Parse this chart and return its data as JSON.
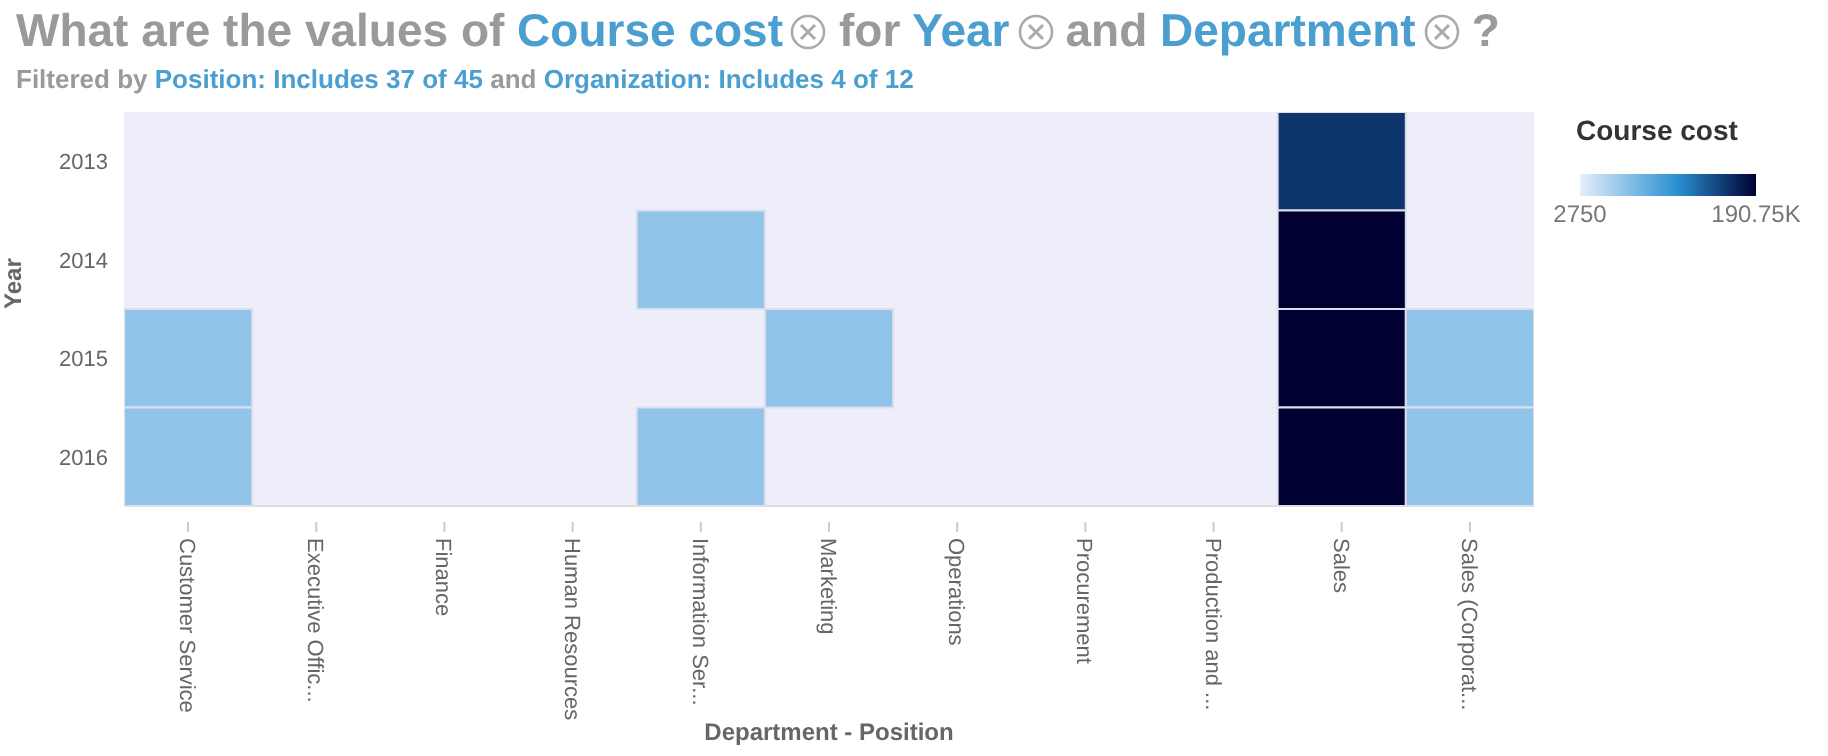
{
  "chart_data": {
    "type": "heatmap",
    "title": "What are the values of Course cost for Year and Department ?",
    "subtitle": "Filtered by Position: Includes 37 of 45 and Organization: Includes 4 of 12",
    "xlabel": "Department - Position",
    "ylabel": "Year",
    "clabel": "Course cost",
    "categories": [
      "Customer Service",
      "Executive Offic...",
      "Finance",
      "Human Resources",
      "Information Ser...",
      "Marketing",
      "Operations",
      "Procurement",
      "Production and ...",
      "Sales",
      "Sales (Corporat..."
    ],
    "y_categories": [
      "2013",
      "2014",
      "2015",
      "2016"
    ],
    "cells": [
      [
        null,
        null,
        null,
        null,
        null,
        null,
        null,
        null,
        null,
        160000,
        null
      ],
      [
        null,
        null,
        null,
        null,
        50000,
        null,
        null,
        null,
        null,
        190750,
        null
      ],
      [
        50000,
        null,
        null,
        null,
        null,
        50000,
        null,
        null,
        null,
        190750,
        50000
      ],
      [
        50000,
        null,
        null,
        null,
        50000,
        null,
        null,
        null,
        null,
        190750,
        50000
      ]
    ],
    "clim": [
      2750,
      190750
    ],
    "cticks": [
      2750,
      {
        "value": 190750,
        "label": "190.75K"
      }
    ]
  }
}
